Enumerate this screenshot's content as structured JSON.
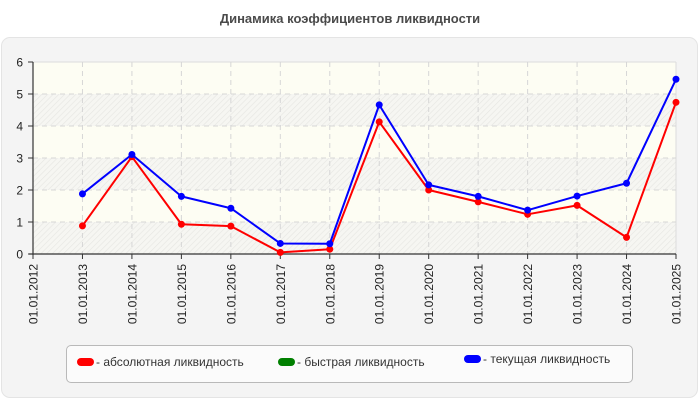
{
  "chart_data": {
    "type": "line",
    "title": "Динамика коэффициентов ликвидности",
    "xlabel": "",
    "ylabel": "",
    "ylim": [
      0,
      6
    ],
    "yticks": [
      0,
      1,
      2,
      3,
      4,
      5,
      6
    ],
    "grid": true,
    "legend_position": "bottom",
    "categories": [
      "01.01.2012",
      "01.01.2013",
      "01.01.2014",
      "01.01.2015",
      "01.01.2016",
      "01.01.2017",
      "01.01.2018",
      "01.01.2019",
      "01.01.2020",
      "01.01.2021",
      "01.01.2022",
      "01.01.2023",
      "01.01.2024",
      "01.01.2025"
    ],
    "series": [
      {
        "name": "- абсолютная ликвидность",
        "color": "#ff0000",
        "values": [
          null,
          0.88,
          3.04,
          0.93,
          0.87,
          0.05,
          0.15,
          4.13,
          2.0,
          1.63,
          1.24,
          1.52,
          0.52,
          4.74
        ]
      },
      {
        "name": "- быстрая ликвидность",
        "color": "#008000",
        "values": [
          null,
          null,
          null,
          null,
          null,
          null,
          null,
          null,
          null,
          null,
          null,
          null,
          null,
          null
        ]
      },
      {
        "name": "- текущая ликвидность",
        "color": "#0000ff",
        "values": [
          null,
          1.88,
          3.11,
          1.8,
          1.43,
          0.33,
          0.32,
          4.66,
          2.16,
          1.8,
          1.37,
          1.81,
          2.21,
          5.46
        ]
      }
    ]
  },
  "legend": {
    "items": [
      {
        "label": "- абсолютная ликвидность",
        "color": "#ff0000"
      },
      {
        "label": "- быстрая ликвидность",
        "color": "#008000"
      },
      {
        "label": "- текущая ликвидность",
        "color": "#0000ff"
      }
    ]
  }
}
